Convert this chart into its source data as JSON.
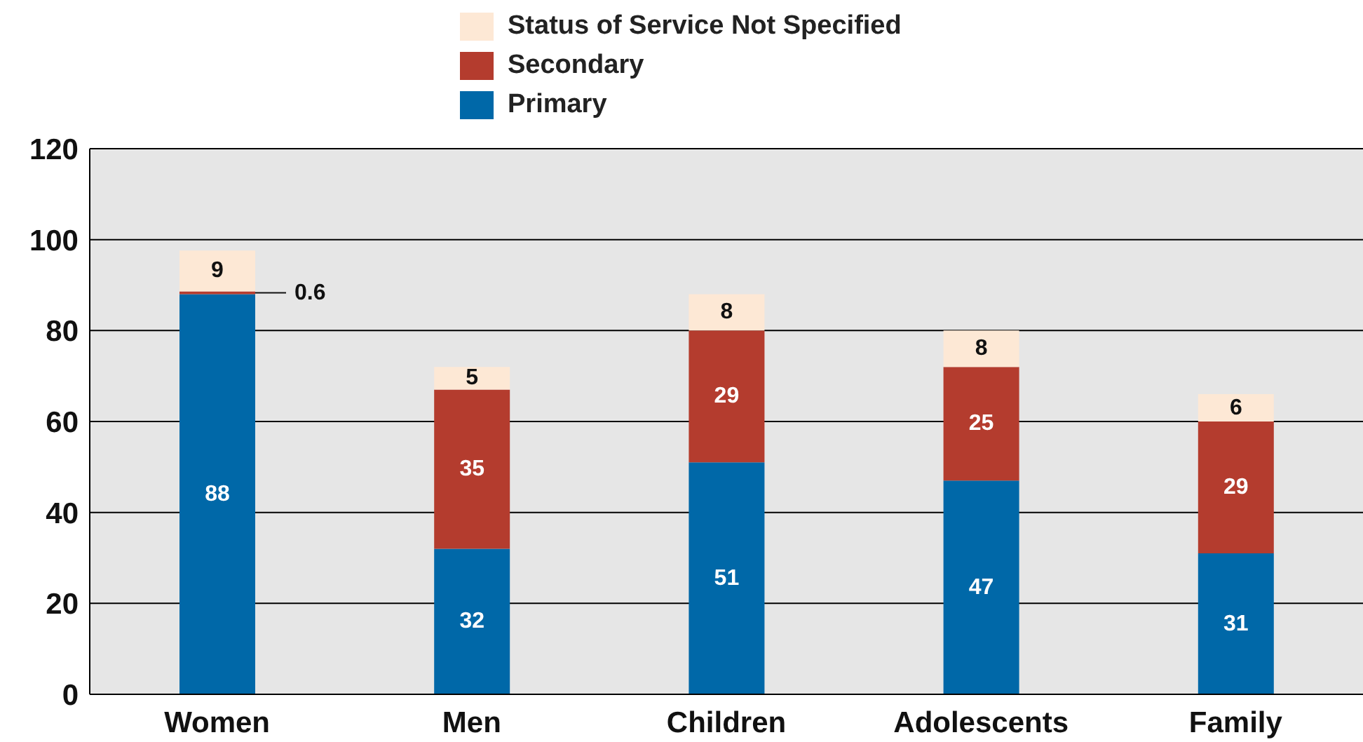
{
  "chart_data": {
    "type": "bar",
    "stacked": true,
    "categories": [
      "Women",
      "Men",
      "Children",
      "Adolescents",
      "Family"
    ],
    "series": [
      {
        "name": "Primary",
        "color": "#0068a8",
        "values": [
          88,
          32,
          51,
          47,
          31
        ]
      },
      {
        "name": "Secondary",
        "color": "#b43c2e",
        "values": [
          0.6,
          35,
          29,
          25,
          29
        ]
      },
      {
        "name": "Status of Service Not Specified",
        "color": "#fde8d5",
        "values": [
          9,
          5,
          8,
          8,
          6
        ]
      }
    ],
    "ylim": [
      0,
      120
    ],
    "yticks": [
      0,
      20,
      40,
      60,
      80,
      100,
      120
    ],
    "grid": "y",
    "legend": "top",
    "data_labels": true
  }
}
